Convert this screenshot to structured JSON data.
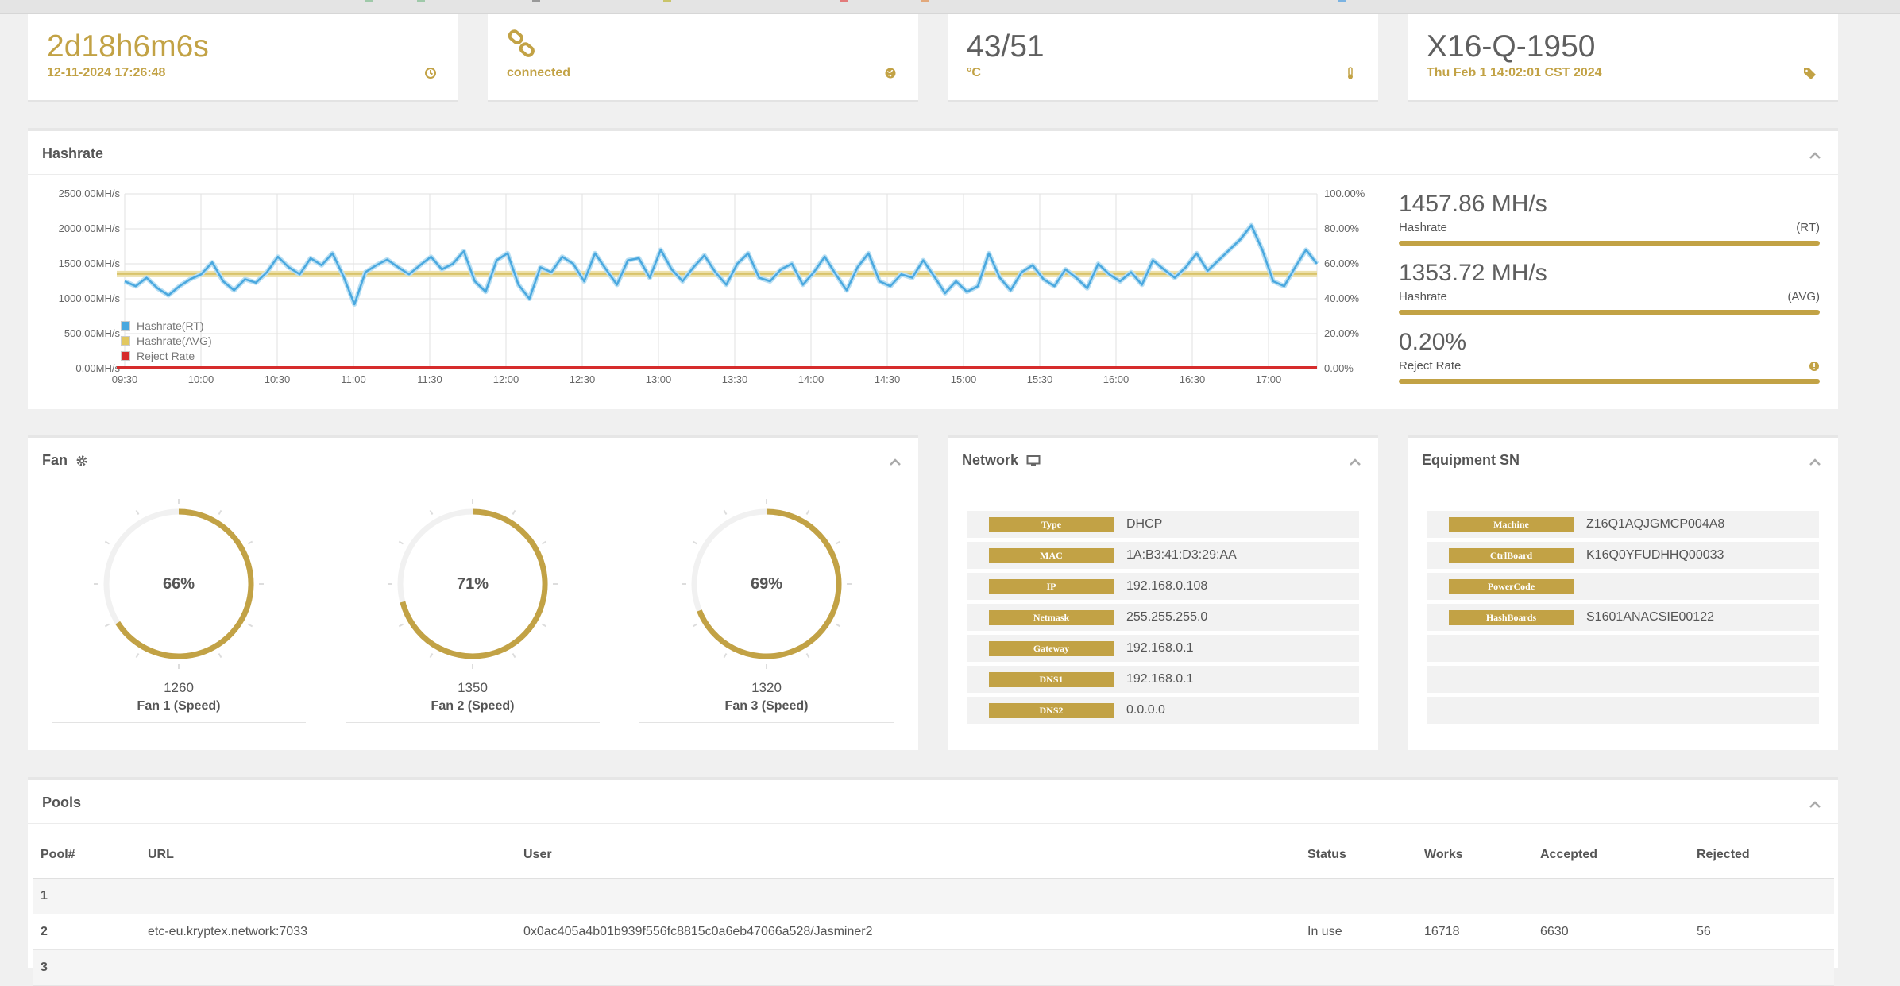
{
  "stats": [
    {
      "value": "2d18h6m6s",
      "sub": "12-11-2024 17:26:48",
      "icon": "clock-icon"
    },
    {
      "value": "",
      "sub": "connected",
      "icon": "globe-icon"
    },
    {
      "value": "43/51",
      "sub": "°C",
      "icon": "thermometer-icon"
    },
    {
      "value": "X16-Q-1950",
      "sub": "Thu Feb 1 14:02:01 CST 2024",
      "icon": "tags-icon"
    }
  ],
  "hashrate": {
    "title": "Hashrate",
    "rt": {
      "value": "1457.86 MH/s",
      "label": "Hashrate",
      "tag": "(RT)"
    },
    "avg": {
      "value": "1353.72 MH/s",
      "label": "Hashrate",
      "tag": "(AVG)"
    },
    "reject": {
      "value": "0.20%",
      "label": "Reject Rate"
    }
  },
  "chart_data": {
    "type": "line",
    "left_ticks": [
      "2500.00MH/s",
      "2000.00MH/s",
      "1500.00MH/s",
      "1000.00MH/s",
      "500.00MH/s",
      "0.00MH/s"
    ],
    "right_ticks": [
      "100.00%",
      "80.00%",
      "60.00%",
      "40.00%",
      "20.00%",
      "0.00%"
    ],
    "x_ticks": [
      "09:30",
      "10:00",
      "10:30",
      "11:00",
      "11:30",
      "12:00",
      "12:30",
      "13:00",
      "13:30",
      "14:00",
      "14:30",
      "15:00",
      "15:30",
      "16:00",
      "16:30",
      "17:00"
    ],
    "ylim": [
      0,
      2500
    ],
    "y2lim": [
      0,
      100
    ],
    "series": [
      {
        "name": "Hashrate(RT)",
        "color": "#4aa8df",
        "values": [
          1250,
          1180,
          1300,
          1150,
          1050,
          1180,
          1280,
          1350,
          1520,
          1250,
          1120,
          1280,
          1230,
          1380,
          1600,
          1450,
          1350,
          1580,
          1480,
          1650,
          1320,
          920,
          1380,
          1480,
          1560,
          1450,
          1350,
          1480,
          1600,
          1420,
          1500,
          1680,
          1250,
          1100,
          1550,
          1650,
          1200,
          1000,
          1450,
          1380,
          1600,
          1500,
          1250,
          1650,
          1420,
          1200,
          1550,
          1580,
          1300,
          1700,
          1420,
          1250,
          1450,
          1620,
          1380,
          1200,
          1500,
          1650,
          1300,
          1250,
          1420,
          1500,
          1200,
          1380,
          1600,
          1350,
          1120,
          1450,
          1650,
          1250,
          1180,
          1350,
          1300,
          1550,
          1320,
          1080,
          1250,
          1100,
          1180,
          1650,
          1300,
          1120,
          1380,
          1480,
          1280,
          1180,
          1420,
          1300,
          1150,
          1500,
          1350,
          1250,
          1380,
          1200,
          1550,
          1420,
          1300,
          1450,
          1650,
          1400,
          1550,
          1700,
          1850,
          2050,
          1700,
          1250,
          1180,
          1450,
          1700,
          1500
        ]
      },
      {
        "name": "Hashrate(AVG)",
        "color": "#d8c36a",
        "values": [
          1340,
          1353.72
        ]
      },
      {
        "name": "Reject Rate",
        "color": "#d62c2c",
        "values": [
          0.2,
          0.2
        ]
      }
    ],
    "legend_position": "bottom-left",
    "grid": true
  },
  "fan": {
    "title": "Fan",
    "fans": [
      {
        "percent": 66,
        "percent_label": "66%",
        "rpm": "1260",
        "label": "Fan 1 (Speed)"
      },
      {
        "percent": 71,
        "percent_label": "71%",
        "rpm": "1350",
        "label": "Fan 2 (Speed)"
      },
      {
        "percent": 69,
        "percent_label": "69%",
        "rpm": "1320",
        "label": "Fan 3 (Speed)"
      }
    ]
  },
  "network": {
    "title": "Network",
    "rows": [
      {
        "key": "Type",
        "value": "DHCP"
      },
      {
        "key": "MAC",
        "value": "1A:B3:41:D3:29:AA"
      },
      {
        "key": "IP",
        "value": "192.168.0.108"
      },
      {
        "key": "Netmask",
        "value": "255.255.255.0"
      },
      {
        "key": "Gateway",
        "value": "192.168.0.1"
      },
      {
        "key": "DNS1",
        "value": "192.168.0.1"
      },
      {
        "key": "DNS2",
        "value": "0.0.0.0"
      }
    ]
  },
  "equipment": {
    "title": "Equipment SN",
    "rows": [
      {
        "key": "Machine",
        "value": "Z16Q1AQJGMCP004A8"
      },
      {
        "key": "CtrlBoard",
        "value": "K16Q0YFUDHHQ00033"
      },
      {
        "key": "PowerCode",
        "value": ""
      },
      {
        "key": "HashBoards",
        "value": "S1601ANACSIE00122"
      },
      {
        "key": "",
        "value": ""
      },
      {
        "key": "",
        "value": ""
      },
      {
        "key": "",
        "value": ""
      }
    ]
  },
  "pools": {
    "title": "Pools",
    "headers": [
      "Pool#",
      "URL",
      "User",
      "Status",
      "Works",
      "Accepted",
      "Rejected"
    ],
    "rows": [
      [
        "1",
        "",
        "",
        "",
        "",
        "",
        ""
      ],
      [
        "2",
        "etc-eu.kryptex.network:7033",
        "0x0ac405a4b01b939f556fc8815c0a6eb47066a528/Jasminer2",
        "In use",
        "16718",
        "6630",
        "56"
      ],
      [
        "3",
        "",
        "",
        "",
        "",
        "",
        ""
      ]
    ]
  },
  "colors": {
    "accent": "#c2a245",
    "rt_line": "#4aa8df",
    "reject_line": "#d62c2c"
  }
}
